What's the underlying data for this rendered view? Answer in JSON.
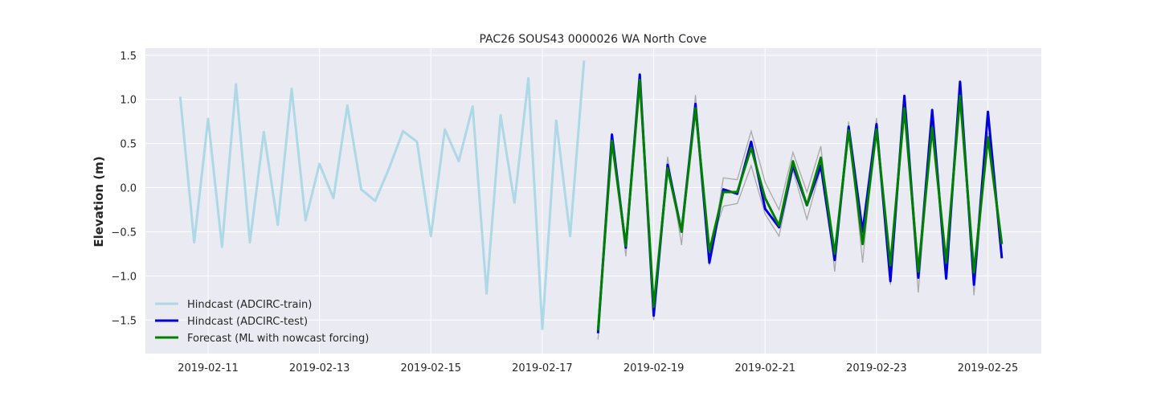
{
  "chart_data": {
    "type": "line",
    "title": "PAC26 SOUS43 0000026 WA North Cove",
    "xlabel": "",
    "ylabel": "Elevation (m)",
    "x_ticks": [
      "2019-02-11",
      "2019-02-13",
      "2019-02-15",
      "2019-02-17",
      "2019-02-19",
      "2019-02-21",
      "2019-02-23",
      "2019-02-25"
    ],
    "y_ticks": [
      1.5,
      1.0,
      0.5,
      0.0,
      -0.5,
      -1.0,
      -1.5
    ],
    "y_tick_labels": [
      "1.5",
      "1.0",
      "0.5",
      "0.0",
      "−0.5",
      "−1.0",
      "−1.5"
    ],
    "xlim": [
      "2019-02-09T21:00",
      "2019-02-25T23:00"
    ],
    "ylim": [
      -1.88,
      1.58
    ],
    "grid": true,
    "legend_position": "lower-left",
    "series": [
      {
        "name": "Hindcast (ADCIRC-train)",
        "color": "#add8e6",
        "points": [
          [
            "2019-02-10T12:00",
            1.03
          ],
          [
            "2019-02-10T18:00",
            -0.62
          ],
          [
            "2019-02-11T00:00",
            0.78
          ],
          [
            "2019-02-11T06:00",
            -0.67
          ],
          [
            "2019-02-11T12:00",
            1.17
          ],
          [
            "2019-02-11T18:00",
            -0.62
          ],
          [
            "2019-02-12T00:00",
            0.63
          ],
          [
            "2019-02-12T06:00",
            -0.42
          ],
          [
            "2019-02-12T12:00",
            1.12
          ],
          [
            "2019-02-12T18:00",
            -0.37
          ],
          [
            "2019-02-13T00:00",
            0.27
          ],
          [
            "2019-02-13T06:00",
            -0.12
          ],
          [
            "2019-02-13T12:00",
            0.93
          ],
          [
            "2019-02-13T18:00",
            -0.02
          ],
          [
            "2019-02-14T00:00",
            -0.15
          ],
          [
            "2019-02-14T06:00",
            0.22
          ],
          [
            "2019-02-14T12:00",
            0.64
          ],
          [
            "2019-02-14T18:00",
            0.52
          ],
          [
            "2019-02-15T00:00",
            -0.55
          ],
          [
            "2019-02-15T06:00",
            0.66
          ],
          [
            "2019-02-15T12:00",
            0.3
          ],
          [
            "2019-02-15T18:00",
            0.92
          ],
          [
            "2019-02-16T00:00",
            -1.2
          ],
          [
            "2019-02-16T06:00",
            0.82
          ],
          [
            "2019-02-16T12:00",
            -0.17
          ],
          [
            "2019-02-16T18:00",
            1.24
          ],
          [
            "2019-02-17T00:00",
            -1.6
          ],
          [
            "2019-02-17T06:00",
            0.76
          ],
          [
            "2019-02-17T12:00",
            -0.55
          ],
          [
            "2019-02-17T18:00",
            1.44
          ]
        ]
      },
      {
        "name": "Hindcast (ADCIRC-test)",
        "color": "#0000dd",
        "points": [
          [
            "2019-02-18T00:00",
            -1.65
          ],
          [
            "2019-02-18T06:00",
            0.6
          ],
          [
            "2019-02-18T12:00",
            -0.68
          ],
          [
            "2019-02-18T18:00",
            1.28
          ],
          [
            "2019-02-19T00:00",
            -1.45
          ],
          [
            "2019-02-19T06:00",
            0.26
          ],
          [
            "2019-02-19T12:00",
            -0.5
          ],
          [
            "2019-02-19T18:00",
            0.95
          ],
          [
            "2019-02-20T00:00",
            -0.85
          ],
          [
            "2019-02-20T06:00",
            -0.02
          ],
          [
            "2019-02-20T12:00",
            -0.07
          ],
          [
            "2019-02-20T18:00",
            0.52
          ],
          [
            "2019-02-21T00:00",
            -0.24
          ],
          [
            "2019-02-21T06:00",
            -0.45
          ],
          [
            "2019-02-21T12:00",
            0.25
          ],
          [
            "2019-02-21T18:00",
            -0.2
          ],
          [
            "2019-02-22T00:00",
            0.25
          ],
          [
            "2019-02-22T06:00",
            -0.82
          ],
          [
            "2019-02-22T12:00",
            0.69
          ],
          [
            "2019-02-22T18:00",
            -0.5
          ],
          [
            "2019-02-23T00:00",
            0.72
          ],
          [
            "2019-02-23T06:00",
            -1.06
          ],
          [
            "2019-02-23T12:00",
            1.04
          ],
          [
            "2019-02-23T18:00",
            -1.02
          ],
          [
            "2019-02-24T00:00",
            0.88
          ],
          [
            "2019-02-24T06:00",
            -1.03
          ],
          [
            "2019-02-24T12:00",
            1.2
          ],
          [
            "2019-02-24T18:00",
            -1.1
          ],
          [
            "2019-02-25T00:00",
            0.86
          ],
          [
            "2019-02-25T06:00",
            -0.8
          ]
        ]
      },
      {
        "name": "Forecast (ML with nowcast forcing)",
        "color": "#008000",
        "points": [
          [
            "2019-02-18T00:00",
            -1.62
          ],
          [
            "2019-02-18T06:00",
            0.53
          ],
          [
            "2019-02-18T12:00",
            -0.66
          ],
          [
            "2019-02-18T18:00",
            1.22
          ],
          [
            "2019-02-19T00:00",
            -1.35
          ],
          [
            "2019-02-19T06:00",
            0.22
          ],
          [
            "2019-02-19T12:00",
            -0.5
          ],
          [
            "2019-02-19T18:00",
            0.9
          ],
          [
            "2019-02-20T00:00",
            -0.72
          ],
          [
            "2019-02-20T06:00",
            -0.05
          ],
          [
            "2019-02-20T12:00",
            -0.05
          ],
          [
            "2019-02-20T18:00",
            0.45
          ],
          [
            "2019-02-21T00:00",
            -0.12
          ],
          [
            "2019-02-21T06:00",
            -0.43
          ],
          [
            "2019-02-21T12:00",
            0.3
          ],
          [
            "2019-02-21T18:00",
            -0.2
          ],
          [
            "2019-02-22T00:00",
            0.34
          ],
          [
            "2019-02-22T06:00",
            -0.75
          ],
          [
            "2019-02-22T12:00",
            0.65
          ],
          [
            "2019-02-22T18:00",
            -0.64
          ],
          [
            "2019-02-23T00:00",
            0.66
          ],
          [
            "2019-02-23T06:00",
            -0.88
          ],
          [
            "2019-02-23T12:00",
            0.9
          ],
          [
            "2019-02-23T18:00",
            -0.95
          ],
          [
            "2019-02-24T00:00",
            0.68
          ],
          [
            "2019-02-24T06:00",
            -0.85
          ],
          [
            "2019-02-24T12:00",
            1.04
          ],
          [
            "2019-02-24T18:00",
            -0.96
          ],
          [
            "2019-02-25T00:00",
            0.57
          ],
          [
            "2019-02-25T06:00",
            -0.64
          ]
        ]
      }
    ],
    "uncertainty_lines": {
      "color": "#a9a9a9",
      "lines": [
        [
          [
            "2019-02-18T00:00",
            -1.72
          ],
          [
            "2019-02-18T06:00",
            0.62
          ],
          [
            "2019-02-18T12:00",
            -0.78
          ],
          [
            "2019-02-18T18:00",
            1.3
          ],
          [
            "2019-02-19T00:00",
            -1.5
          ],
          [
            "2019-02-19T06:00",
            0.35
          ],
          [
            "2019-02-19T12:00",
            -0.65
          ],
          [
            "2019-02-19T18:00",
            1.05
          ],
          [
            "2019-02-20T00:00",
            -0.88
          ],
          [
            "2019-02-20T06:00",
            0.11
          ],
          [
            "2019-02-20T12:00",
            0.09
          ],
          [
            "2019-02-20T18:00",
            0.64
          ],
          [
            "2019-02-21T00:00",
            0.06
          ],
          [
            "2019-02-21T06:00",
            -0.25
          ],
          [
            "2019-02-21T12:00",
            0.4
          ],
          [
            "2019-02-21T18:00",
            -0.05
          ],
          [
            "2019-02-22T00:00",
            0.47
          ],
          [
            "2019-02-22T06:00",
            -0.95
          ],
          [
            "2019-02-22T12:00",
            0.75
          ],
          [
            "2019-02-22T18:00",
            -0.85
          ],
          [
            "2019-02-23T00:00",
            0.79
          ],
          [
            "2019-02-23T06:00",
            -1.1
          ],
          [
            "2019-02-23T12:00",
            0.96
          ],
          [
            "2019-02-23T18:00",
            -1.19
          ],
          [
            "2019-02-24T00:00",
            0.76
          ],
          [
            "2019-02-24T06:00",
            -0.98
          ],
          [
            "2019-02-24T12:00",
            1.1
          ],
          [
            "2019-02-24T18:00",
            -1.22
          ],
          [
            "2019-02-25T00:00",
            0.62
          ],
          [
            "2019-02-25T06:00",
            -0.78
          ]
        ],
        [
          [
            "2019-02-18T00:00",
            -1.6
          ],
          [
            "2019-02-18T06:00",
            0.5
          ],
          [
            "2019-02-18T12:00",
            -0.62
          ],
          [
            "2019-02-18T18:00",
            1.2
          ],
          [
            "2019-02-19T00:00",
            -1.3
          ],
          [
            "2019-02-19T06:00",
            0.18
          ],
          [
            "2019-02-19T12:00",
            -0.45
          ],
          [
            "2019-02-19T18:00",
            0.86
          ],
          [
            "2019-02-20T00:00",
            -0.7
          ],
          [
            "2019-02-20T06:00",
            -0.21
          ],
          [
            "2019-02-20T12:00",
            -0.18
          ],
          [
            "2019-02-20T18:00",
            0.25
          ],
          [
            "2019-02-21T00:00",
            -0.3
          ],
          [
            "2019-02-21T06:00",
            -0.55
          ],
          [
            "2019-02-21T12:00",
            0.2
          ],
          [
            "2019-02-21T18:00",
            -0.36
          ],
          [
            "2019-02-22T00:00",
            0.22
          ],
          [
            "2019-02-22T06:00",
            -0.7
          ],
          [
            "2019-02-22T12:00",
            0.6
          ],
          [
            "2019-02-22T18:00",
            -0.6
          ],
          [
            "2019-02-23T00:00",
            0.6
          ],
          [
            "2019-02-23T06:00",
            -0.85
          ],
          [
            "2019-02-23T12:00",
            0.88
          ],
          [
            "2019-02-23T18:00",
            -0.92
          ],
          [
            "2019-02-24T00:00",
            0.64
          ],
          [
            "2019-02-24T06:00",
            -0.82
          ],
          [
            "2019-02-24T12:00",
            1.0
          ],
          [
            "2019-02-24T18:00",
            -0.92
          ],
          [
            "2019-02-25T00:00",
            0.52
          ],
          [
            "2019-02-25T06:00",
            -0.6
          ]
        ]
      ]
    }
  }
}
